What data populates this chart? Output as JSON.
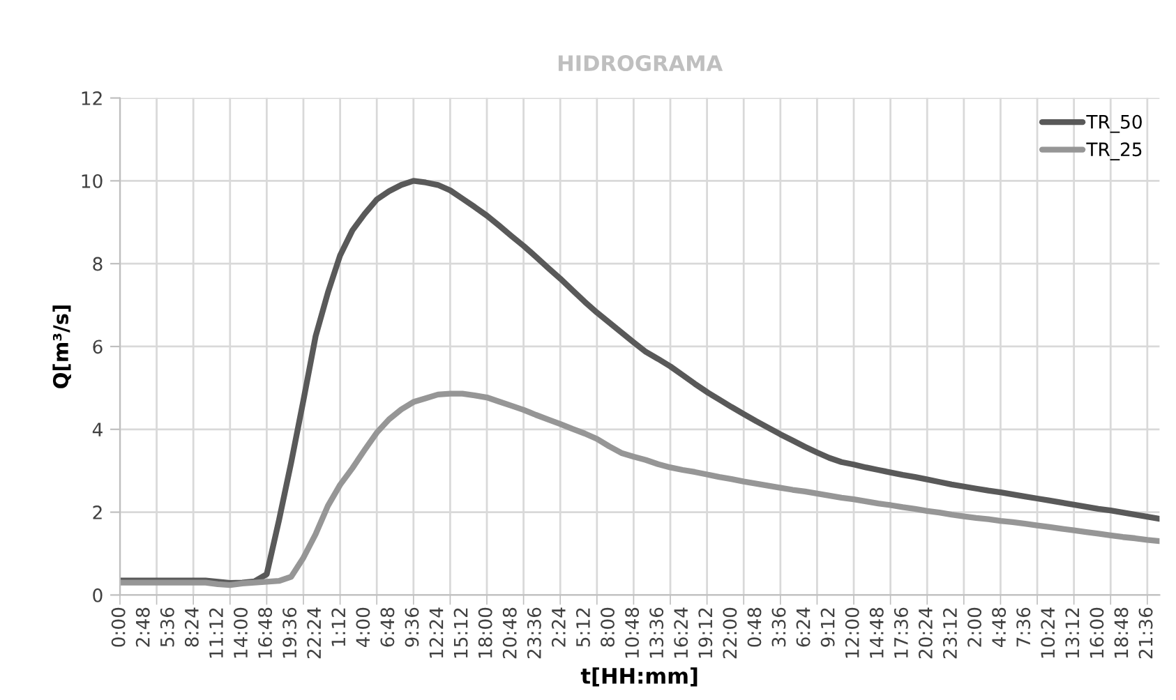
{
  "chart_data": {
    "type": "line",
    "title": "HIDROGRAMA",
    "xlabel": "t[HH:mm]",
    "ylabel": "Q[m³/s]",
    "ylim": [
      0,
      12
    ],
    "yticks": [
      0,
      2,
      4,
      6,
      8,
      10,
      12
    ],
    "categories": [
      "0:00",
      null,
      "2:48",
      null,
      "5:36",
      null,
      "8:24",
      null,
      "11:12",
      null,
      "14:00",
      null,
      "16:48",
      null,
      "19:36",
      null,
      "22:24",
      null,
      "1:12",
      null,
      "4:00",
      null,
      "6:48",
      null,
      "9:36",
      null,
      "12:24",
      null,
      "15:12",
      null,
      "18:00",
      null,
      "20:48",
      null,
      "23:36",
      null,
      "2:24",
      null,
      "5:12",
      null,
      "8:00",
      null,
      "10:48",
      null,
      "13:36",
      null,
      "16:24",
      null,
      "19:12",
      null,
      "22:00",
      null,
      "0:48",
      null,
      "3:36",
      null,
      "6:24",
      null,
      "9:12",
      null,
      "12:00",
      null,
      "14:48",
      null,
      "17:36",
      null,
      "20:24",
      null,
      "23:12",
      null,
      "2:00",
      null,
      "4:48",
      null,
      "7:36",
      null,
      "10:24",
      null,
      "13:12",
      null,
      "16:00",
      null,
      "18:48",
      null,
      "21:36",
      null
    ],
    "grid": true,
    "legend": "top right",
    "marker": "none",
    "line_style": "solid",
    "series": [
      {
        "name": "TR_50",
        "color": "#595959",
        "values": [
          0.35,
          0.35,
          0.35,
          0.35,
          0.35,
          0.35,
          0.35,
          0.35,
          0.32,
          0.29,
          0.3,
          0.33,
          0.5,
          1.8,
          3.2,
          4.7,
          6.25,
          7.3,
          8.2,
          8.8,
          9.2,
          9.55,
          9.75,
          9.9,
          10,
          9.96,
          9.9,
          9.77,
          9.57,
          9.37,
          9.16,
          8.92,
          8.67,
          8.43,
          8.17,
          7.9,
          7.64,
          7.36,
          7.08,
          6.82,
          6.58,
          6.34,
          6.1,
          5.87,
          5.7,
          5.52,
          5.31,
          5.1,
          4.9,
          4.72,
          4.54,
          4.37,
          4.2,
          4.04,
          3.88,
          3.73,
          3.58,
          3.44,
          3.31,
          3.21,
          3.15,
          3.08,
          3.02,
          2.96,
          2.9,
          2.85,
          2.79,
          2.73,
          2.67,
          2.62,
          2.57,
          2.52,
          2.48,
          2.43,
          2.38,
          2.33,
          2.28,
          2.23,
          2.18,
          2.13,
          2.08,
          2.04,
          1.99,
          1.94,
          1.89,
          1.84
        ]
      },
      {
        "name": "TR_25",
        "color": "#969696",
        "values": [
          0.3,
          0.3,
          0.3,
          0.3,
          0.3,
          0.3,
          0.3,
          0.3,
          0.26,
          0.24,
          0.28,
          0.3,
          0.32,
          0.34,
          0.44,
          0.9,
          1.47,
          2.15,
          2.66,
          3.06,
          3.5,
          3.92,
          4.24,
          4.48,
          4.66,
          4.75,
          4.84,
          4.86,
          4.86,
          4.82,
          4.77,
          4.67,
          4.57,
          4.47,
          4.35,
          4.24,
          4.13,
          4.01,
          3.9,
          3.77,
          3.59,
          3.43,
          3.34,
          3.26,
          3.16,
          3.08,
          3.02,
          2.97,
          2.91,
          2.85,
          2.8,
          2.74,
          2.69,
          2.64,
          2.59,
          2.54,
          2.5,
          2.45,
          2.4,
          2.35,
          2.31,
          2.26,
          2.21,
          2.17,
          2.12,
          2.08,
          2.03,
          1.99,
          1.94,
          1.9,
          1.86,
          1.83,
          1.79,
          1.76,
          1.72,
          1.68,
          1.64,
          1.6,
          1.56,
          1.52,
          1.48,
          1.44,
          1.4,
          1.37,
          1.33,
          1.3
        ]
      }
    ]
  }
}
